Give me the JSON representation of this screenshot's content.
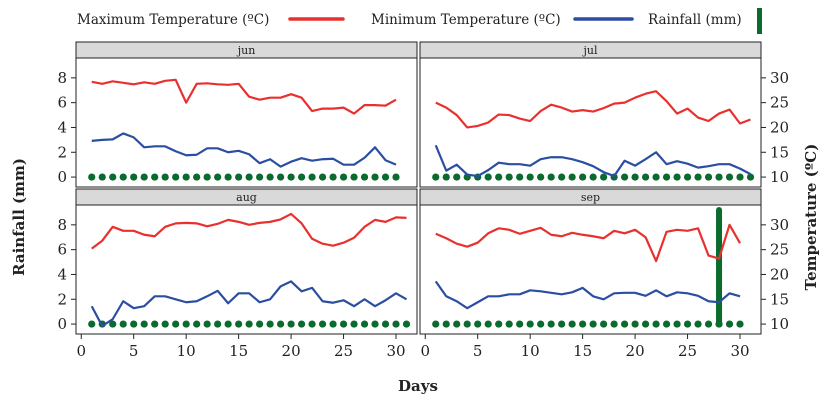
{
  "chart_data": {
    "type": "line",
    "xlabel": "Days",
    "ylabel_left": "Rainfall (mm)",
    "ylabel_right": "Temperature (ºC)",
    "xlim": [
      -0.5,
      32
    ],
    "x_ticks": [
      0,
      5,
      10,
      15,
      20,
      25,
      30
    ],
    "ylim_rain": [
      -0.8,
      9.6
    ],
    "y_ticks_rain": [
      0,
      2,
      4,
      6,
      8
    ],
    "ylim_temp": [
      8,
      34
    ],
    "y_ticks_temp": [
      10,
      15,
      20,
      25,
      30
    ],
    "legend_position": "top",
    "colors": {
      "max": "#e8312f",
      "min": "#2b4ea2",
      "rain": "#0b6b2e"
    },
    "legend": [
      {
        "key": "max",
        "label": "Maximum Temperature (ºC)"
      },
      {
        "key": "min",
        "label": "Minimum Temperature (ºC)"
      },
      {
        "key": "rain",
        "label": "Rainfall (mm)"
      }
    ],
    "panels": [
      {
        "label": "jun",
        "days": 30,
        "max_temp": [
          29.2,
          28.8,
          29.3,
          29.0,
          28.7,
          29.1,
          28.8,
          29.4,
          29.6,
          25.0,
          28.8,
          28.9,
          28.7,
          28.6,
          28.8,
          26.2,
          25.6,
          26.0,
          26.0,
          26.7,
          26.0,
          23.3,
          23.8,
          23.8,
          24.0,
          22.8,
          24.5,
          24.5,
          24.4,
          25.6
        ],
        "min_temp": [
          17.3,
          17.5,
          17.6,
          18.8,
          18.0,
          16.0,
          16.2,
          16.2,
          15.2,
          14.4,
          14.5,
          15.8,
          15.8,
          15.0,
          15.3,
          14.6,
          12.8,
          13.6,
          12.1,
          13.1,
          13.8,
          13.3,
          13.6,
          13.7,
          12.5,
          12.5,
          13.9,
          16.0,
          13.4,
          12.5
        ],
        "rainfall": [
          0,
          0,
          0,
          0,
          0,
          0,
          0,
          0,
          0,
          0,
          0,
          0,
          0,
          0,
          0,
          0,
          0,
          0,
          0,
          0,
          0,
          0,
          0,
          0,
          0,
          0,
          0,
          0,
          0,
          0
        ]
      },
      {
        "label": "jul",
        "days": 31,
        "max_temp": [
          25.0,
          24.0,
          22.5,
          20.0,
          20.3,
          21.0,
          22.6,
          22.5,
          21.8,
          21.3,
          23.3,
          24.6,
          24.0,
          23.2,
          23.5,
          23.2,
          23.9,
          24.8,
          25.0,
          26.0,
          26.8,
          27.3,
          25.3,
          22.8,
          23.8,
          22.0,
          21.3,
          22.8,
          23.6,
          20.8,
          21.6
        ],
        "min_temp": [
          16.4,
          11.3,
          12.5,
          10.5,
          10.2,
          11.4,
          12.9,
          12.6,
          12.6,
          12.3,
          13.6,
          14.0,
          14.0,
          13.6,
          13.0,
          12.2,
          11.0,
          10.2,
          13.3,
          12.3,
          13.6,
          15.0,
          12.6,
          13.2,
          12.7,
          11.9,
          12.2,
          12.6,
          12.6,
          11.7,
          10.6
        ],
        "rainfall": [
          0,
          0,
          0,
          0,
          0,
          0,
          0,
          0,
          0,
          0,
          0,
          0,
          0,
          0,
          0,
          0,
          0,
          0,
          0,
          0,
          0,
          0,
          0,
          0,
          0,
          0,
          0,
          0,
          0,
          0,
          0
        ]
      },
      {
        "label": "aug",
        "days": 31,
        "max_temp": [
          25.2,
          26.8,
          29.6,
          28.8,
          28.8,
          28.0,
          27.7,
          29.6,
          30.3,
          30.4,
          30.3,
          29.7,
          30.2,
          31.0,
          30.6,
          30.0,
          30.4,
          30.6,
          31.1,
          32.2,
          30.3,
          27.2,
          26.2,
          25.8,
          26.4,
          27.4,
          29.6,
          31.0,
          30.6,
          31.5,
          31.4
        ],
        "min_temp": [
          13.6,
          9.6,
          11.0,
          14.6,
          13.2,
          13.6,
          15.6,
          15.6,
          15.0,
          14.4,
          14.6,
          15.6,
          16.7,
          14.2,
          16.2,
          16.2,
          14.4,
          15.0,
          17.6,
          18.6,
          16.6,
          17.3,
          14.6,
          14.3,
          14.8,
          13.6,
          15.0,
          13.6,
          14.8,
          16.2,
          15.0
        ],
        "rainfall": [
          0,
          0,
          0,
          0,
          0,
          0,
          0,
          0,
          0,
          0,
          0,
          0,
          0,
          0,
          0,
          0,
          0,
          0,
          0,
          0,
          0,
          0,
          0,
          0,
          0,
          0,
          0,
          0,
          0,
          0,
          0
        ]
      },
      {
        "label": "sep",
        "days": 30,
        "max_temp": [
          28.2,
          27.3,
          26.2,
          25.6,
          26.4,
          28.3,
          29.3,
          29.0,
          28.2,
          28.8,
          29.4,
          28.0,
          27.7,
          28.4,
          28.0,
          27.7,
          27.3,
          28.8,
          28.3,
          29.0,
          27.5,
          22.7,
          28.6,
          29.0,
          28.8,
          29.3,
          23.8,
          23.2,
          30.0,
          26.3
        ],
        "min_temp": [
          18.6,
          15.6,
          14.6,
          13.2,
          14.4,
          15.6,
          15.6,
          16.0,
          16.0,
          16.8,
          16.6,
          16.3,
          16.0,
          16.4,
          17.3,
          15.6,
          15.0,
          16.2,
          16.3,
          16.3,
          15.7,
          16.8,
          15.6,
          16.4,
          16.2,
          15.7,
          14.6,
          14.4,
          16.2,
          15.6
        ],
        "rainfall": [
          0,
          0,
          0,
          0,
          0,
          0,
          0,
          0,
          0,
          0,
          0,
          0,
          0,
          0,
          0,
          0,
          0,
          0,
          0,
          0,
          0,
          0,
          0,
          0,
          0,
          0,
          0,
          9.2,
          0,
          0
        ]
      }
    ]
  }
}
